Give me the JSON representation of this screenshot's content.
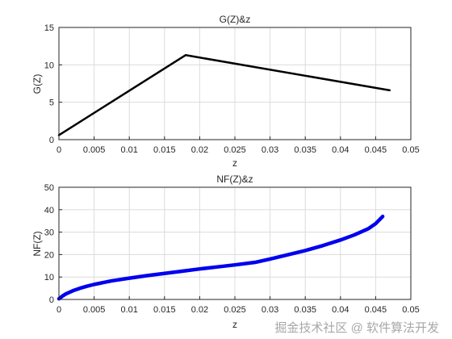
{
  "chart_data": [
    {
      "type": "line",
      "title": "G(Z)&z",
      "xlabel": "z",
      "ylabel": "G(Z)",
      "xlim": [
        0,
        0.05
      ],
      "ylim": [
        0,
        15
      ],
      "x_ticks": [
        "0",
        "0.005",
        "0.01",
        "0.015",
        "0.02",
        "0.025",
        "0.03",
        "0.035",
        "0.04",
        "0.045",
        "0.05"
      ],
      "y_ticks": [
        "0",
        "5",
        "10",
        "15"
      ],
      "grid": true,
      "series": [
        {
          "color": "#000000",
          "x": [
            0,
            0.018,
            0.047
          ],
          "y": [
            0.6,
            11.3,
            6.6
          ]
        }
      ]
    },
    {
      "type": "line",
      "title": "NF(Z)&z",
      "xlabel": "z",
      "ylabel": "NF(Z)",
      "xlim": [
        0,
        0.05
      ],
      "ylim": [
        0,
        50
      ],
      "x_ticks": [
        "0",
        "0.005",
        "0.01",
        "0.015",
        "0.02",
        "0.025",
        "0.03",
        "0.035",
        "0.04",
        "0.045",
        "0.05"
      ],
      "y_ticks": [
        "0",
        "10",
        "20",
        "30",
        "40",
        "50"
      ],
      "grid": true,
      "series": [
        {
          "color": "#0000ee",
          "x": [
            0,
            0.0005,
            0.001,
            0.002,
            0.003,
            0.004,
            0.005,
            0.0075,
            0.01,
            0.0125,
            0.015,
            0.0175,
            0.02,
            0.0225,
            0.025,
            0.028,
            0.03,
            0.0325,
            0.035,
            0.0375,
            0.04,
            0.042,
            0.044,
            0.045,
            0.046
          ],
          "y": [
            0.3,
            1.5,
            2.5,
            3.9,
            5.0,
            5.9,
            6.7,
            8.3,
            9.5,
            10.6,
            11.6,
            12.6,
            13.6,
            14.5,
            15.4,
            16.6,
            18.0,
            19.9,
            21.8,
            24.0,
            26.5,
            28.8,
            31.6,
            33.8,
            37.0
          ]
        }
      ]
    }
  ],
  "watermark": "掘金技术社区 @ 软件算法开发"
}
